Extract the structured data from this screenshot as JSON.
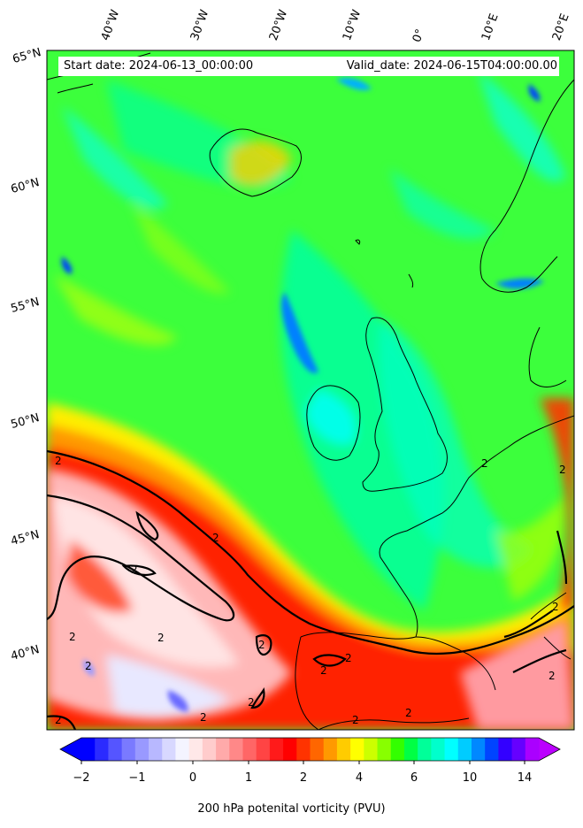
{
  "header": {
    "start_date": "Start date: 2024-06-13_00:00:00",
    "valid_date": "Valid_date: 2024-06-15T04:00:00.00"
  },
  "longitude_labels": [
    "40°W",
    "30°W",
    "20°W",
    "10°W",
    "0°",
    "10°E",
    "20°E"
  ],
  "latitude_labels": [
    "65°N",
    "60°N",
    "55°N",
    "50°N",
    "45°N",
    "40°N"
  ],
  "contour_label": "2",
  "colorbar": {
    "label": "200 hPa potenital vorticity (PVU)",
    "ticks": [
      "−2",
      "−1",
      "0",
      "1",
      "2",
      "4",
      "6",
      "10",
      "14"
    ],
    "colors": [
      "#0000ff",
      "#2b2bff",
      "#5555ff",
      "#7a7aff",
      "#9999ff",
      "#b8b8ff",
      "#d8d8ff",
      "#f4f4ff",
      "#ffe8e8",
      "#ffcccc",
      "#ffaaaa",
      "#ff8888",
      "#ff6666",
      "#ff4444",
      "#ff1a1a",
      "#ff0000",
      "#ff3300",
      "#ff6600",
      "#ff9900",
      "#ffcc00",
      "#ffff00",
      "#ccff00",
      "#88ff00",
      "#33ff00",
      "#00ff44",
      "#00ff99",
      "#00ffcc",
      "#00ffff",
      "#00ccff",
      "#0088ff",
      "#0044ff",
      "#3300ff",
      "#6600ff",
      "#aa00ff"
    ],
    "extend_min_color": "#0000ff",
    "extend_max_color": "#bb00ff"
  }
}
